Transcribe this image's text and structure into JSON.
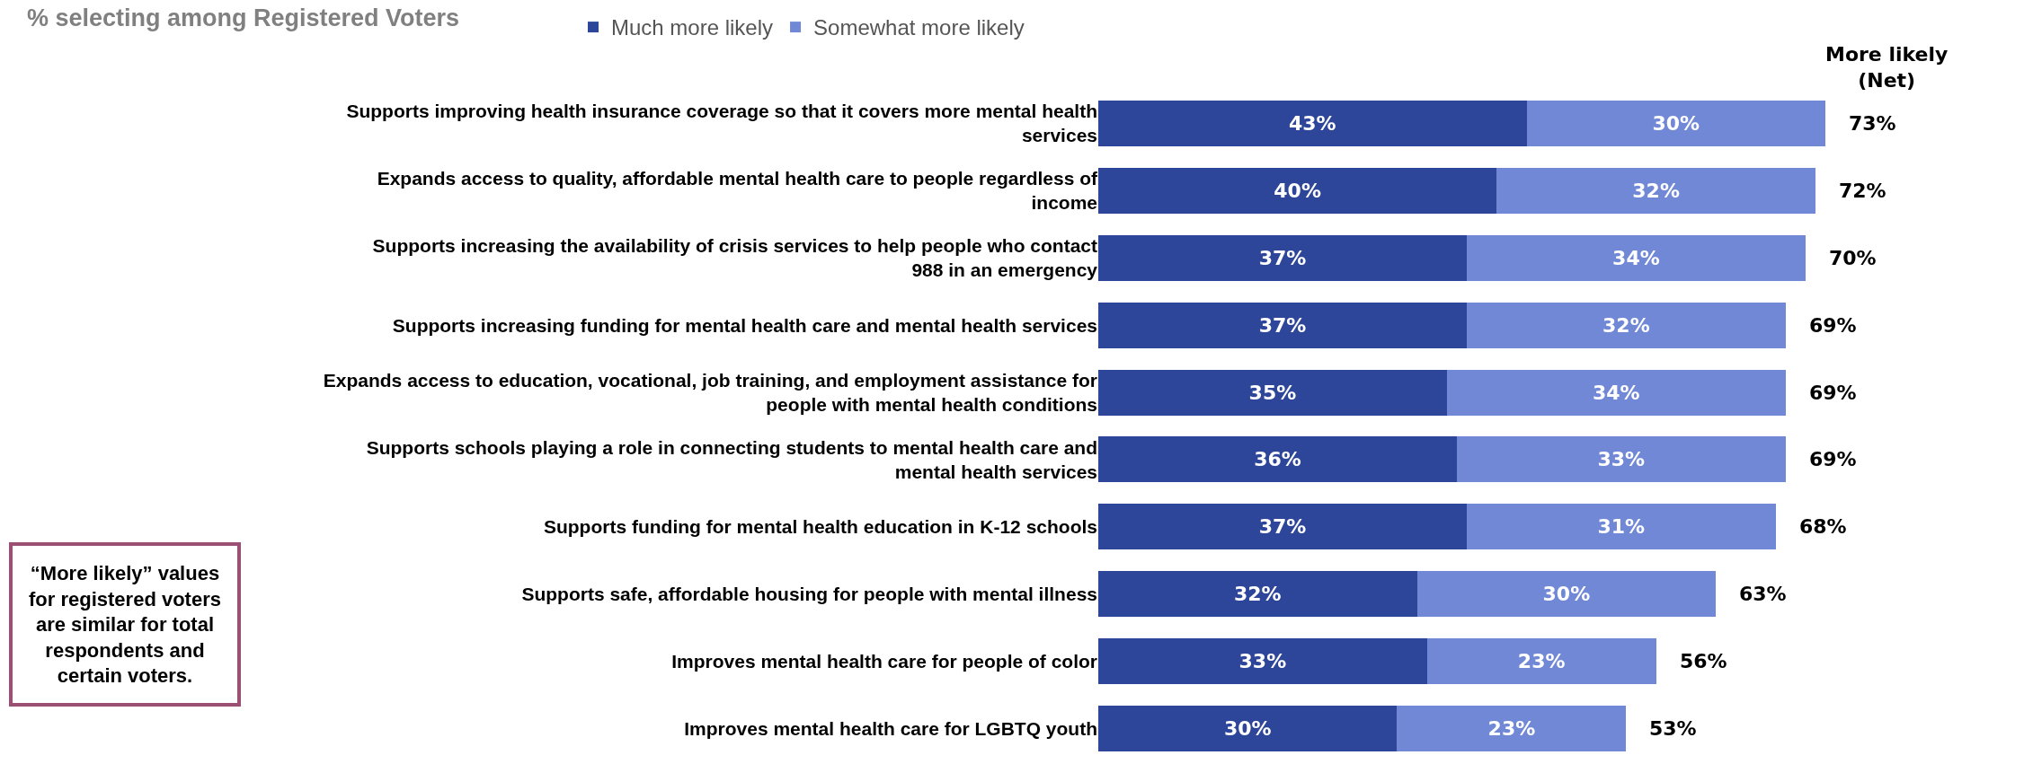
{
  "chart_data": {
    "type": "bar",
    "orientation": "horizontal",
    "stacked": true,
    "title": "% selecting among Registered Voters",
    "categories": [
      "Supports improving health insurance coverage so that it covers more mental health services",
      "Expands access to quality, affordable mental health care to people regardless of income",
      "Supports increasing the availability of crisis services to help people who contact 988 in an emergency",
      "Supports increasing funding for mental health care and mental health services",
      "Expands access to education, vocational, job training, and employment assistance for people with mental health conditions",
      "Supports schools playing a role in connecting students to mental health care and mental health services",
      "Supports funding for mental health education in K-12 schools",
      "Supports safe, affordable housing for people with mental illness",
      "Improves mental health care for people of color",
      "Improves mental health care for LGBTQ youth"
    ],
    "series": [
      {
        "name": "Much more likely",
        "color": "#2e4699",
        "values": [
          43,
          40,
          37,
          37,
          35,
          36,
          37,
          32,
          33,
          30
        ],
        "value_labels": [
          "43%",
          "40%",
          "37%",
          "37%",
          "35%",
          "36%",
          "37%",
          "32%",
          "33%",
          "30%"
        ]
      },
      {
        "name": "Somewhat more likely",
        "color": "#7088d6",
        "values": [
          30,
          32,
          34,
          32,
          34,
          33,
          31,
          30,
          23,
          23
        ],
        "value_labels": [
          "30%",
          "32%",
          "34%",
          "32%",
          "34%",
          "33%",
          "31%",
          "30%",
          "23%",
          "23%"
        ]
      }
    ],
    "totals": [
      "73%",
      "72%",
      "70%",
      "69%",
      "69%",
      "69%",
      "68%",
      "63%",
      "56%",
      "53%"
    ],
    "annotations": [
      "More likely (Net)",
      "“More likely” values for registered voters are similar for total respondents and certain voters."
    ],
    "legend": "top",
    "tick_labels": "y"
  }
}
